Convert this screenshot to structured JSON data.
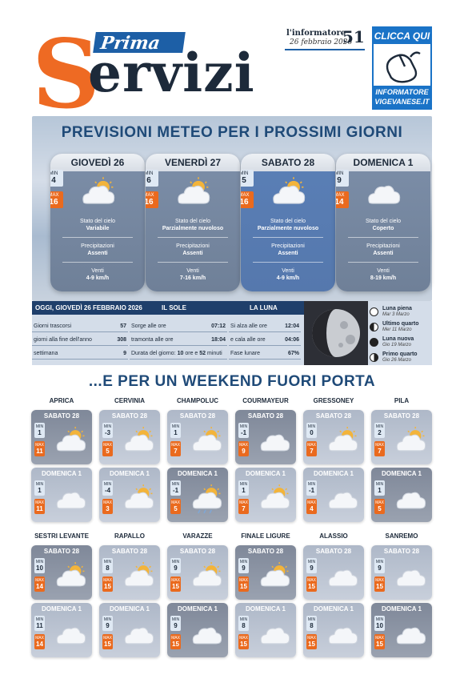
{
  "masthead": {
    "prima": "Prima",
    "s": "S",
    "rest": "ervizi",
    "paper_a": "l'",
    "paper_b": "informatore",
    "date": "26 febbraio 2026",
    "page": "51",
    "clicca": "CLICCA QUI",
    "clicca_sub1": "INFORMATORE",
    "clicca_sub2": "VIGEVANESE.IT"
  },
  "forecast": {
    "title": "PREVISIONI METEO PER I PROSSIMI GIORNI",
    "labels": {
      "min": "MIN",
      "max": "MAX",
      "sky": "Stato del cielo",
      "rain": "Precipitazioni",
      "wind": "Venti"
    },
    "days": [
      {
        "name": "GIOVEDÌ 26",
        "min": "4",
        "max": "16",
        "sky": "Variabile",
        "rain": "Assenti",
        "wind": "4-9 km/h",
        "icon": "sun-cloud-icon"
      },
      {
        "name": "VENERDÌ 27",
        "min": "6",
        "max": "16",
        "sky": "Parzialmente nuvoloso",
        "rain": "Assenti",
        "wind": "7-16 km/h",
        "icon": "sun-cloud-icon"
      },
      {
        "name": "SABATO 28",
        "min": "5",
        "max": "16",
        "sky": "Parzialmente nuvoloso",
        "rain": "Assenti",
        "wind": "4-9 km/h",
        "icon": "sun-cloud-icon"
      },
      {
        "name": "DOMENICA 1",
        "min": "9",
        "max": "14",
        "sky": "Coperto",
        "rain": "Assenti",
        "wind": "8-19 km/h",
        "icon": "cloud-icon"
      }
    ]
  },
  "almanac": {
    "head_today": "OGGI, GIOVEDÌ 26 FEBBRAIO 2026",
    "head_sun": "IL SOLE",
    "head_moon": "LA LUNA",
    "today": [
      {
        "k": "Giorni trascorsi",
        "v": "57"
      },
      {
        "k": "giorni alla fine dell'anno",
        "v": "308"
      },
      {
        "k": "settimana",
        "v": "9"
      }
    ],
    "sun": [
      {
        "k": "Sorge alle ore",
        "v": "07:12"
      },
      {
        "k": "tramonta alle ore",
        "v": "18:04"
      }
    ],
    "duration_k": "Durata del giorno:",
    "duration_v1": "10",
    "duration_m1": "ore e",
    "duration_v2": "52",
    "duration_m2": "minuti",
    "moon": [
      {
        "k": "Si alza alle ore",
        "v": "12:04"
      },
      {
        "k": "e cala alle ore",
        "v": "04:06"
      },
      {
        "k": "Fase lunare",
        "v": "67%"
      }
    ],
    "phases": [
      {
        "name": "Luna piena",
        "date": "Mar 3 Marzo"
      },
      {
        "name": "Ultimo quarto",
        "date": "Mer 11 Marzo"
      },
      {
        "name": "Luna nuova",
        "date": "Gio 19 Marzo"
      },
      {
        "name": "Primo quarto",
        "date": "Gio 26 Marzo"
      }
    ]
  },
  "weekend": {
    "title": "...E PER UN WEEKEND FUORI PORTA",
    "sat": "SABATO 28",
    "sun": "DOMENICA 1",
    "min": "MIN",
    "max": "MAX",
    "cities": [
      {
        "name": "APRICA",
        "sat": [
          "1",
          "11"
        ],
        "sun": [
          "1",
          "11"
        ],
        "si": "sun-cloud-icon",
        "di": "cloud-icon"
      },
      {
        "name": "CERVINIA",
        "sat": [
          "-3",
          "5"
        ],
        "sun": [
          "-4",
          "3"
        ],
        "si": "sun-cloud-icon",
        "di": "sun-cloud-icon"
      },
      {
        "name": "CHAMPOLUC",
        "sat": [
          "1",
          "7"
        ],
        "sun": [
          "-1",
          "5"
        ],
        "si": "sun-cloud-icon",
        "di": "rain-cloud-icon"
      },
      {
        "name": "COURMAYEUR",
        "sat": [
          "-1",
          "9"
        ],
        "sun": [
          "1",
          "7"
        ],
        "si": "cloud-icon",
        "di": "sun-cloud-icon"
      },
      {
        "name": "GRESSONEY",
        "sat": [
          "0",
          "7"
        ],
        "sun": [
          "-1",
          "4"
        ],
        "si": "sun-cloud-icon",
        "di": "cloud-icon"
      },
      {
        "name": "PILA",
        "sat": [
          "2",
          "7"
        ],
        "sun": [
          "1",
          "5"
        ],
        "si": "sun-cloud-icon",
        "di": "cloud-icon"
      },
      {
        "name": "SESTRI LEVANTE",
        "sat": [
          "10",
          "14"
        ],
        "sun": [
          "11",
          "14"
        ],
        "si": "sun-cloud-icon",
        "di": "cloud-icon"
      },
      {
        "name": "RAPALLO",
        "sat": [
          "8",
          "15"
        ],
        "sun": [
          "9",
          "15"
        ],
        "si": "sun-cloud-icon",
        "di": "cloud-icon"
      },
      {
        "name": "VARAZZE",
        "sat": [
          "9",
          "15"
        ],
        "sun": [
          "9",
          "15"
        ],
        "si": "sun-cloud-icon",
        "di": "cloud-icon"
      },
      {
        "name": "FINALE LIGURE",
        "sat": [
          "9",
          "15"
        ],
        "sun": [
          "8",
          "15"
        ],
        "si": "sun-cloud-icon",
        "di": "cloud-icon"
      },
      {
        "name": "ALASSIO",
        "sat": [
          "9",
          "15"
        ],
        "sun": [
          "8",
          "15"
        ],
        "si": "cloud-icon",
        "di": "cloud-icon"
      },
      {
        "name": "SANREMO",
        "sat": [
          "9",
          "15"
        ],
        "sun": [
          "10",
          "15"
        ],
        "si": "cloud-icon",
        "di": "cloud-icon"
      }
    ]
  }
}
